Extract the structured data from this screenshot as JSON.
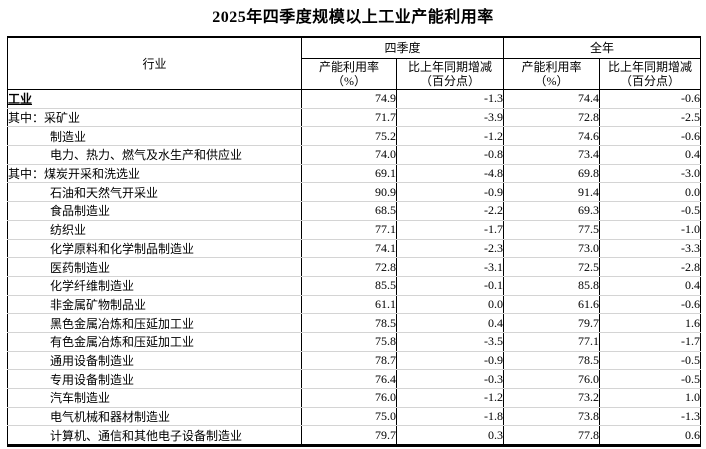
{
  "title": "2025年四季度规模以上工业产能利用率",
  "table": {
    "header": {
      "industry": "行业",
      "q4_group": "四季度",
      "year_group": "全年",
      "rate_line1": "产能利用率",
      "rate_line2": "（%）",
      "change_line1": "比上年同期增减",
      "change_line2": "（百分点）"
    },
    "rows": [
      {
        "label": "工业",
        "style": "total",
        "q4_rate": "74.9",
        "q4_change": "-1.3",
        "fy_rate": "74.4",
        "fy_change": "-0.6"
      },
      {
        "label": "其中：采矿业",
        "style": "group",
        "q4_rate": "71.7",
        "q4_change": "-3.9",
        "fy_rate": "72.8",
        "fy_change": "-2.5"
      },
      {
        "label": "制造业",
        "style": "indent",
        "q4_rate": "75.2",
        "q4_change": "-1.2",
        "fy_rate": "74.6",
        "fy_change": "-0.6"
      },
      {
        "label": "电力、热力、燃气及水生产和供应业",
        "style": "indent",
        "q4_rate": "74.0",
        "q4_change": "-0.8",
        "fy_rate": "73.4",
        "fy_change": "0.4"
      },
      {
        "label": "其中：煤炭开采和洗选业",
        "style": "group",
        "q4_rate": "69.1",
        "q4_change": "-4.8",
        "fy_rate": "69.8",
        "fy_change": "-3.0"
      },
      {
        "label": "石油和天然气开采业",
        "style": "indent",
        "q4_rate": "90.9",
        "q4_change": "-0.9",
        "fy_rate": "91.4",
        "fy_change": "0.0"
      },
      {
        "label": "食品制造业",
        "style": "indent",
        "q4_rate": "68.5",
        "q4_change": "-2.2",
        "fy_rate": "69.3",
        "fy_change": "-0.5"
      },
      {
        "label": "纺织业",
        "style": "indent",
        "q4_rate": "77.1",
        "q4_change": "-1.7",
        "fy_rate": "77.5",
        "fy_change": "-1.0"
      },
      {
        "label": "化学原料和化学制品制造业",
        "style": "indent",
        "q4_rate": "74.1",
        "q4_change": "-2.3",
        "fy_rate": "73.0",
        "fy_change": "-3.3"
      },
      {
        "label": "医药制造业",
        "style": "indent",
        "q4_rate": "72.8",
        "q4_change": "-3.1",
        "fy_rate": "72.5",
        "fy_change": "-2.8"
      },
      {
        "label": "化学纤维制造业",
        "style": "indent",
        "q4_rate": "85.5",
        "q4_change": "-0.1",
        "fy_rate": "85.8",
        "fy_change": "0.4"
      },
      {
        "label": "非金属矿物制品业",
        "style": "indent",
        "q4_rate": "61.1",
        "q4_change": "0.0",
        "fy_rate": "61.6",
        "fy_change": "-0.6"
      },
      {
        "label": "黑色金属冶炼和压延加工业",
        "style": "indent",
        "q4_rate": "78.5",
        "q4_change": "0.4",
        "fy_rate": "79.7",
        "fy_change": "1.6"
      },
      {
        "label": "有色金属冶炼和压延加工业",
        "style": "indent",
        "q4_rate": "75.8",
        "q4_change": "-3.5",
        "fy_rate": "77.1",
        "fy_change": "-1.7"
      },
      {
        "label": "通用设备制造业",
        "style": "indent",
        "q4_rate": "78.7",
        "q4_change": "-0.9",
        "fy_rate": "78.5",
        "fy_change": "-0.5"
      },
      {
        "label": "专用设备制造业",
        "style": "indent",
        "q4_rate": "76.4",
        "q4_change": "-0.3",
        "fy_rate": "76.0",
        "fy_change": "-0.5"
      },
      {
        "label": "汽车制造业",
        "style": "indent",
        "q4_rate": "76.0",
        "q4_change": "-1.2",
        "fy_rate": "73.2",
        "fy_change": "1.0"
      },
      {
        "label": "电气机械和器材制造业",
        "style": "indent",
        "q4_rate": "75.0",
        "q4_change": "-1.8",
        "fy_rate": "73.8",
        "fy_change": "-1.3"
      },
      {
        "label": "计算机、通信和其他电子设备制造业",
        "style": "indent",
        "q4_rate": "79.7",
        "q4_change": "0.3",
        "fy_rate": "77.8",
        "fy_change": "0.6"
      }
    ]
  }
}
